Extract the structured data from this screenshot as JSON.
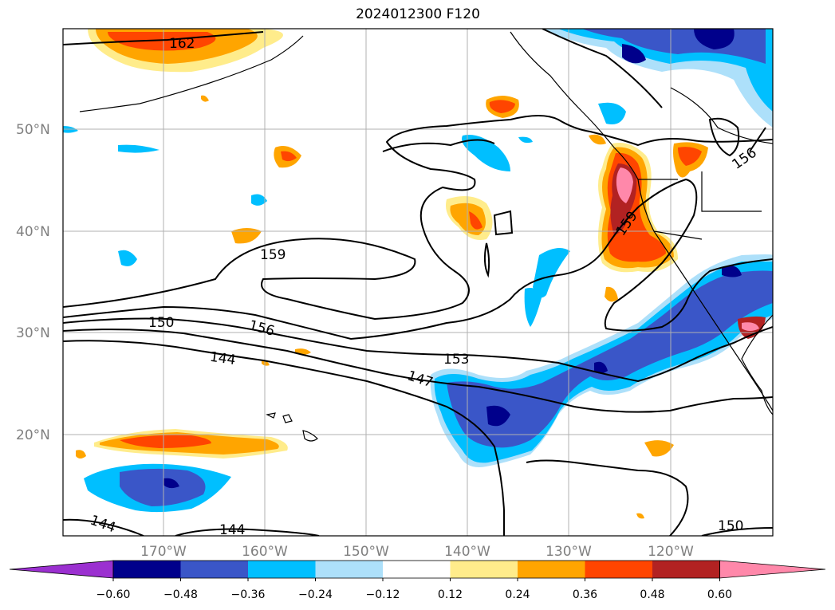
{
  "title": "2024012300 F120",
  "map": {
    "lat_labels": [
      "50°N",
      "40°N",
      "30°N",
      "20°N"
    ],
    "lon_labels": [
      "170°W",
      "160°W",
      "150°W",
      "140°W",
      "130°W",
      "120°W"
    ],
    "contour_labels": [
      "162",
      "159",
      "159",
      "156",
      "156",
      "153",
      "150",
      "150",
      "147",
      "144",
      "144",
      "144"
    ]
  },
  "colorbar": {
    "ticks": [
      "−0.60",
      "−0.48",
      "−0.36",
      "−0.24",
      "−0.12",
      "0.12",
      "0.24",
      "0.36",
      "0.48",
      "0.60"
    ],
    "colors": [
      "#9b30d0",
      "#00008b",
      "#3a56c8",
      "#00bfff",
      "#ade0fa",
      "#ffffff",
      "#ffec8b",
      "#ffa500",
      "#ff4500",
      "#b22222",
      "#ff88aa"
    ]
  }
}
